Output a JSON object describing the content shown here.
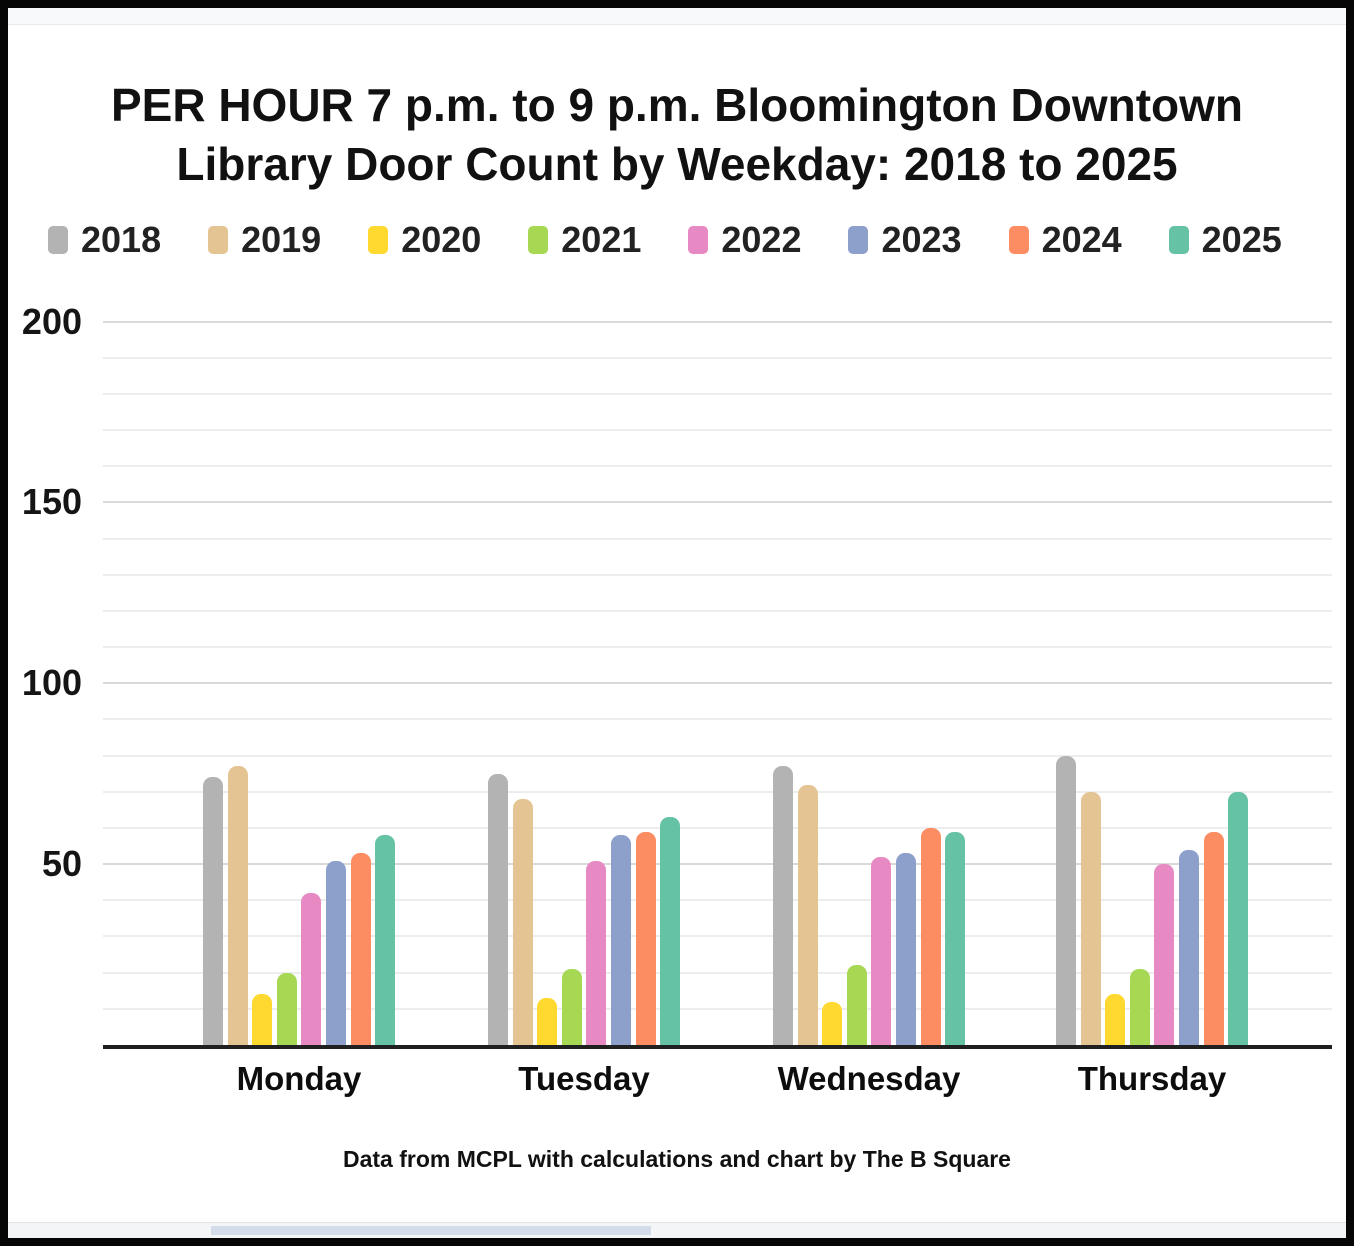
{
  "title": {
    "line1": "PER HOUR 7 p.m. to 9 p.m. Bloomington Downtown",
    "line2": "Library Door Count by Weekday: 2018 to 2025"
  },
  "footer": {
    "credit": "Data from MCPL with calculations and chart by The B Square"
  },
  "chart_data": {
    "type": "bar",
    "title": "PER HOUR 7 p.m. to 9 p.m. Bloomington Downtown Library Door Count by Weekday: 2018 to 2025",
    "categories": [
      "Monday",
      "Tuesday",
      "Wednesday",
      "Thursday"
    ],
    "series": [
      {
        "name": "2018",
        "color": "#b3b3b3",
        "values": [
          74,
          75,
          77,
          80
        ]
      },
      {
        "name": "2019",
        "color": "#e5c494",
        "values": [
          77,
          68,
          72,
          70
        ]
      },
      {
        "name": "2020",
        "color": "#ffd92f",
        "values": [
          14,
          13,
          12,
          14
        ]
      },
      {
        "name": "2021",
        "color": "#a6d854",
        "values": [
          20,
          21,
          22,
          21
        ]
      },
      {
        "name": "2022",
        "color": "#e78ac3",
        "values": [
          42,
          51,
          52,
          50
        ]
      },
      {
        "name": "2023",
        "color": "#8da0cb",
        "values": [
          51,
          58,
          53,
          54
        ]
      },
      {
        "name": "2024",
        "color": "#fc8d62",
        "values": [
          53,
          59,
          60,
          59
        ]
      },
      {
        "name": "2025",
        "color": "#66c2a5",
        "values": [
          58,
          63,
          59,
          70
        ]
      }
    ],
    "ylim": [
      0,
      200
    ],
    "yticks": [
      50,
      100,
      150,
      200
    ],
    "minor_grid_step": 10,
    "grid": "horizontal",
    "legend_position": "top"
  }
}
